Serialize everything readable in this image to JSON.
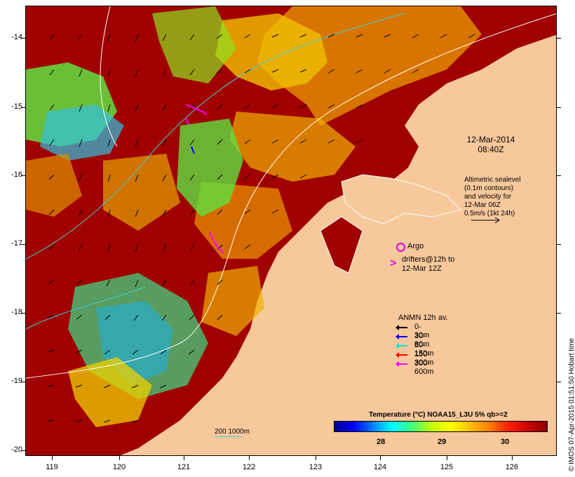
{
  "map": {
    "date": "12-Mar-2014",
    "time": "08:40Z",
    "y_axis_labels": [
      "-14",
      "-15",
      "-16",
      "-17",
      "-18",
      "-19",
      "-20"
    ],
    "x_axis_labels": [
      "119",
      "120",
      "121",
      "122",
      "123",
      "124",
      "125",
      "126"
    ],
    "sealevel_note": [
      "Altimetric sealevel",
      "(0.1m contours)",
      "and velocity for",
      "12-Mar 06Z",
      "0.5m/s (1kt 24h)"
    ],
    "argo_label": "Argo",
    "drifters_label_1": "drifters@12h to",
    "drifters_label_2": "12-Mar 12Z",
    "anmn_title": "ANMN 12h av.",
    "anmn_legend": [
      {
        "label": "0-30m",
        "color": "#000000"
      },
      {
        "label": "30-80m",
        "color": "#0000ff"
      },
      {
        "label": "80-150m",
        "color": "#00e5e5"
      },
      {
        "label": "150-300m",
        "color": "#ff0000"
      },
      {
        "label": "300-600m",
        "color": "#ff00ff"
      }
    ],
    "colorbar_title": "Temperature (°C) NOAA15_L3U 5% qb>=2",
    "colorbar_ticks": [
      "28",
      "29",
      "30"
    ],
    "isobath_label": "200  1000m",
    "credit": "© IMOS 07-Apr-2015 01:51:50 Hobart time",
    "colors": {
      "land": "#f7c89b",
      "hot_sst": "#a00000",
      "isobath_200": "#ffffff",
      "isobath_1000": "#40d0d0",
      "argo": "#e000e0"
    }
  }
}
